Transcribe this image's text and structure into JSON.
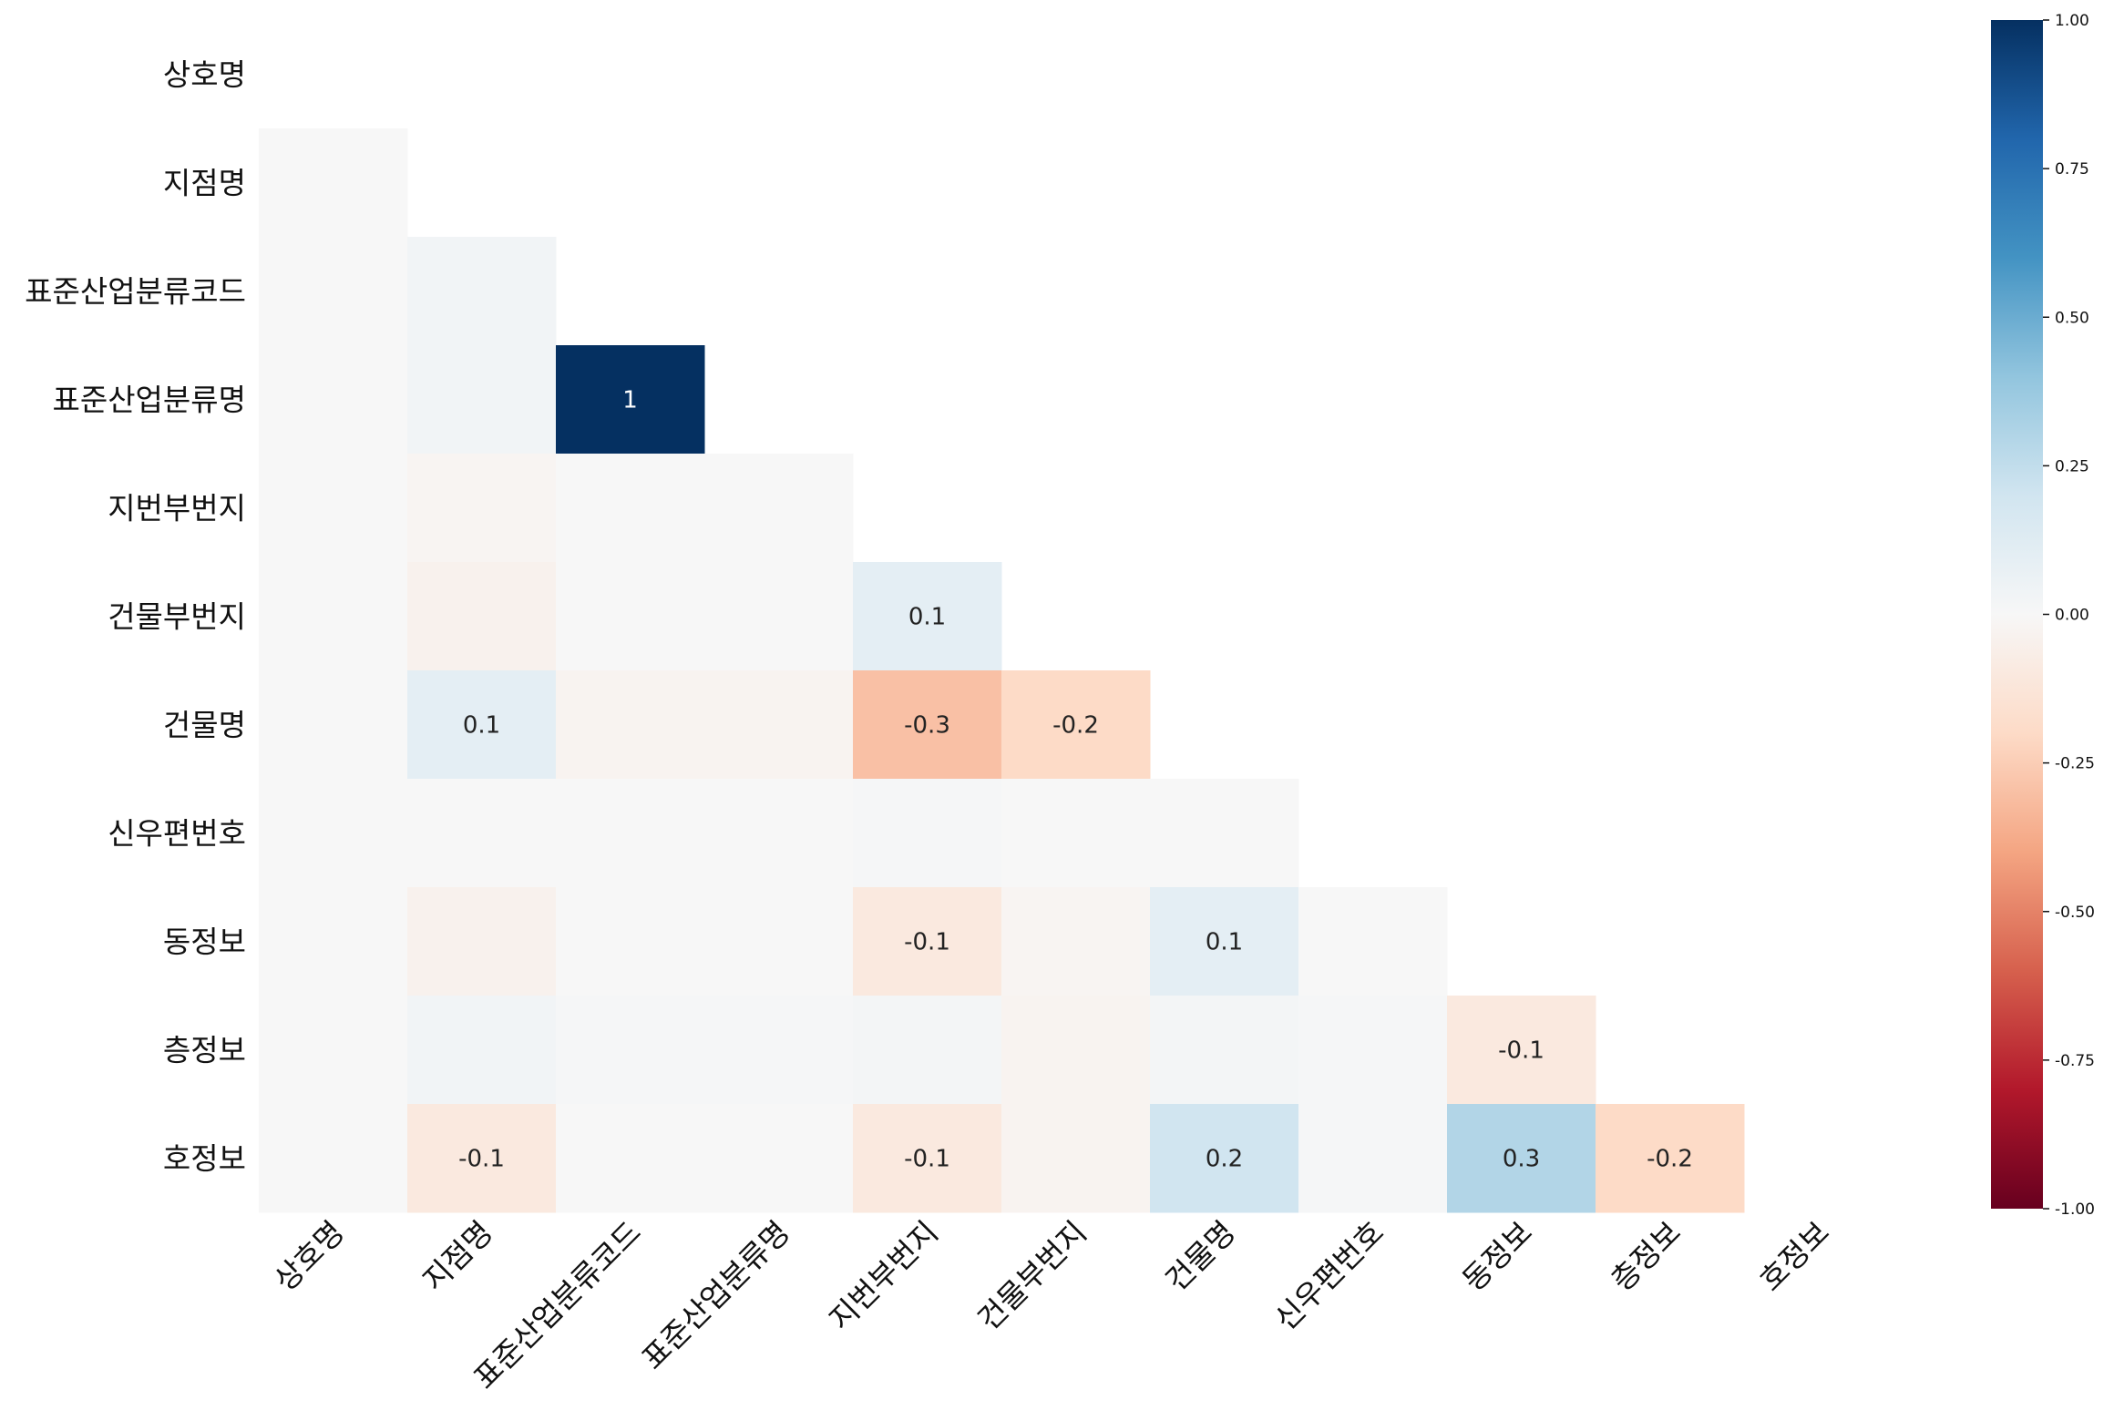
{
  "chart_data": {
    "type": "heatmap",
    "variables": [
      "상호명",
      "지점명",
      "표준산업분류코드",
      "표준산업분류명",
      "지번부번지",
      "건물부번지",
      "건물명",
      "신우편번호",
      "동정보",
      "층정보",
      "호정보"
    ],
    "values": [
      [
        null,
        null,
        null,
        null,
        null,
        null,
        null,
        null,
        null,
        null,
        null
      ],
      [
        0.0,
        null,
        null,
        null,
        null,
        null,
        null,
        null,
        null,
        null,
        null
      ],
      [
        0.0,
        0.03,
        null,
        null,
        null,
        null,
        null,
        null,
        null,
        null,
        null
      ],
      [
        0.0,
        0.03,
        1.0,
        null,
        null,
        null,
        null,
        null,
        null,
        null,
        null
      ],
      [
        0.0,
        -0.02,
        0.0,
        0.0,
        null,
        null,
        null,
        null,
        null,
        null,
        null
      ],
      [
        0.0,
        -0.04,
        0.0,
        0.0,
        0.1,
        null,
        null,
        null,
        null,
        null,
        null
      ],
      [
        0.0,
        0.1,
        -0.03,
        -0.03,
        -0.3,
        -0.2,
        null,
        null,
        null,
        null,
        null
      ],
      [
        0.0,
        0.0,
        0.0,
        0.0,
        0.01,
        0.0,
        0.0,
        null,
        null,
        null,
        null
      ],
      [
        0.0,
        -0.04,
        0.0,
        0.0,
        -0.1,
        -0.02,
        0.1,
        0.0,
        null,
        null,
        null
      ],
      [
        0.0,
        0.03,
        0.01,
        0.01,
        0.02,
        -0.03,
        0.02,
        0.01,
        -0.1,
        null,
        null
      ],
      [
        0.0,
        -0.1,
        0.0,
        0.0,
        -0.1,
        -0.03,
        0.2,
        0.01,
        0.3,
        -0.2,
        null
      ]
    ],
    "annotations": [
      {
        "row": 3,
        "col": 2,
        "text": "1"
      },
      {
        "row": 5,
        "col": 4,
        "text": "0.1"
      },
      {
        "row": 6,
        "col": 1,
        "text": "0.1"
      },
      {
        "row": 6,
        "col": 4,
        "text": "-0.3"
      },
      {
        "row": 6,
        "col": 5,
        "text": "-0.2"
      },
      {
        "row": 8,
        "col": 4,
        "text": "-0.1"
      },
      {
        "row": 8,
        "col": 6,
        "text": "0.1"
      },
      {
        "row": 9,
        "col": 8,
        "text": "-0.1"
      },
      {
        "row": 10,
        "col": 1,
        "text": "-0.1"
      },
      {
        "row": 10,
        "col": 4,
        "text": "-0.1"
      },
      {
        "row": 10,
        "col": 6,
        "text": "0.2"
      },
      {
        "row": 10,
        "col": 8,
        "text": "0.3"
      },
      {
        "row": 10,
        "col": 9,
        "text": "-0.2"
      }
    ],
    "colorbar": {
      "range": [
        -1.0,
        1.0
      ],
      "colormap": "RdBu",
      "ticks": [
        "1.00",
        "0.75",
        "0.50",
        "0.25",
        "0.00",
        "-0.25",
        "-0.50",
        "-0.75",
        "-1.00"
      ]
    },
    "mask": "upper-triangle-and-diagonal"
  }
}
